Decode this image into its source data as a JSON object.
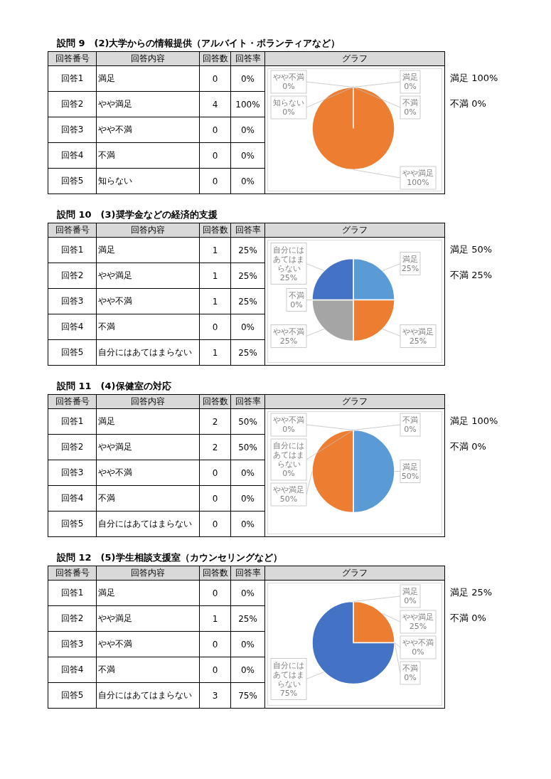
{
  "chart_data": [
    {
      "type": "pie",
      "title": "設問 9　(2)大学からの情報提供（アルバイト・ボランティアなど）",
      "categories": [
        "満足",
        "やや満足",
        "やや不満",
        "不満",
        "知らない"
      ],
      "values": [
        0,
        100,
        0,
        0,
        0
      ],
      "value_labels": [
        "0%",
        "100%",
        "0%",
        "0%",
        "0%"
      ],
      "colors": [
        "#5b9bd5",
        "#ed7d31",
        "#a5a5a5",
        "#ffc000",
        "#4472c4"
      ],
      "annotations": [
        "回答番号",
        "回答内容",
        "回答数",
        "回答率",
        "グラフ",
        "回答1",
        "回答2",
        "回答3",
        "回答4",
        "回答5",
        "0",
        "4",
        "0",
        "0",
        "0",
        "満足 100%",
        "不満 0%"
      ]
    },
    {
      "type": "pie",
      "title": "設問 10　(3)奨学金などの経済的支援",
      "categories": [
        "満足",
        "やや満足",
        "やや不満",
        "不満",
        "自分にはあてはまらない"
      ],
      "values": [
        25,
        25,
        25,
        0,
        25
      ],
      "value_labels": [
        "25%",
        "25%",
        "25%",
        "0%",
        "25%"
      ],
      "colors": [
        "#5b9bd5",
        "#ed7d31",
        "#a5a5a5",
        "#ffc000",
        "#4472c4"
      ],
      "annotations": [
        "回答番号",
        "回答内容",
        "回答数",
        "回答率",
        "グラフ",
        "回答1",
        "回答2",
        "回答3",
        "回答4",
        "回答5",
        "1",
        "1",
        "1",
        "0",
        "1",
        "満足 50%",
        "不満 25%"
      ]
    },
    {
      "type": "pie",
      "title": "設問 11　(4)保健室の対応",
      "categories": [
        "満足",
        "やや満足",
        "やや不満",
        "不満",
        "自分にはあてはまらない"
      ],
      "values": [
        50,
        50,
        0,
        0,
        0
      ],
      "value_labels": [
        "50%",
        "50%",
        "0%",
        "0%",
        "0%"
      ],
      "colors": [
        "#5b9bd5",
        "#ed7d31",
        "#a5a5a5",
        "#ffc000",
        "#4472c4"
      ],
      "annotations": [
        "回答番号",
        "回答内容",
        "回答数",
        "回答率",
        "グラフ",
        "回答1",
        "回答2",
        "回答3",
        "回答4",
        "回答5",
        "2",
        "2",
        "0",
        "0",
        "0",
        "満足 100%",
        "不満 0%"
      ]
    },
    {
      "type": "pie",
      "title": "設問 12　(5)学生相談支援室（カウンセリングなど）",
      "categories": [
        "満足",
        "やや満足",
        "やや不満",
        "不満",
        "自分にはあてはまらない"
      ],
      "values": [
        0,
        25,
        0,
        0,
        75
      ],
      "value_labels": [
        "0%",
        "25%",
        "0%",
        "0%",
        "75%"
      ],
      "colors": [
        "#5b9bd5",
        "#ed7d31",
        "#a5a5a5",
        "#ffc000",
        "#4472c4"
      ],
      "annotations": [
        "回答番号",
        "回答内容",
        "回答数",
        "回答率",
        "グラフ",
        "回答1",
        "回答2",
        "回答3",
        "回答4",
        "回答5",
        "0",
        "1",
        "0",
        "0",
        "3",
        "満足 25%",
        "不満 0%"
      ]
    }
  ]
}
